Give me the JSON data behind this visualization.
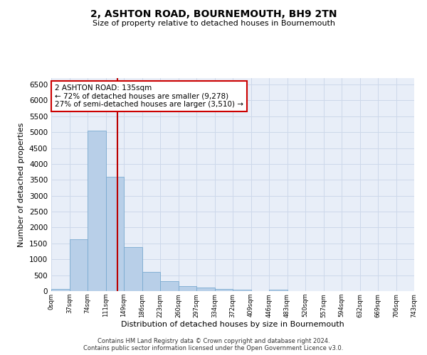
{
  "title": "2, ASHTON ROAD, BOURNEMOUTH, BH9 2TN",
  "subtitle": "Size of property relative to detached houses in Bournemouth",
  "xlabel": "Distribution of detached houses by size in Bournemouth",
  "ylabel": "Number of detached properties",
  "footer_line1": "Contains HM Land Registry data © Crown copyright and database right 2024.",
  "footer_line2": "Contains public sector information licensed under the Open Government Licence v3.0.",
  "bin_labels": [
    "0sqm",
    "37sqm",
    "74sqm",
    "111sqm",
    "149sqm",
    "186sqm",
    "223sqm",
    "260sqm",
    "297sqm",
    "334sqm",
    "372sqm",
    "409sqm",
    "446sqm",
    "483sqm",
    "520sqm",
    "557sqm",
    "594sqm",
    "632sqm",
    "669sqm",
    "706sqm",
    "743sqm"
  ],
  "bar_values": [
    70,
    1620,
    5050,
    3600,
    1390,
    600,
    310,
    155,
    120,
    60,
    40,
    10,
    40,
    0,
    0,
    0,
    0,
    0,
    0,
    0
  ],
  "bar_color": "#b8cfe8",
  "bar_edge_color": "#7aaad0",
  "grid_color": "#cdd8ea",
  "background_color": "#e8eef8",
  "vline_color": "#bb0000",
  "annotation_text": "2 ASHTON ROAD: 135sqm\n← 72% of detached houses are smaller (9,278)\n27% of semi-detached houses are larger (3,510) →",
  "annotation_box_color": "#ffffff",
  "annotation_box_edge": "#cc0000",
  "ylim": [
    0,
    6700
  ],
  "yticks": [
    0,
    500,
    1000,
    1500,
    2000,
    2500,
    3000,
    3500,
    4000,
    4500,
    5000,
    5500,
    6000,
    6500
  ]
}
